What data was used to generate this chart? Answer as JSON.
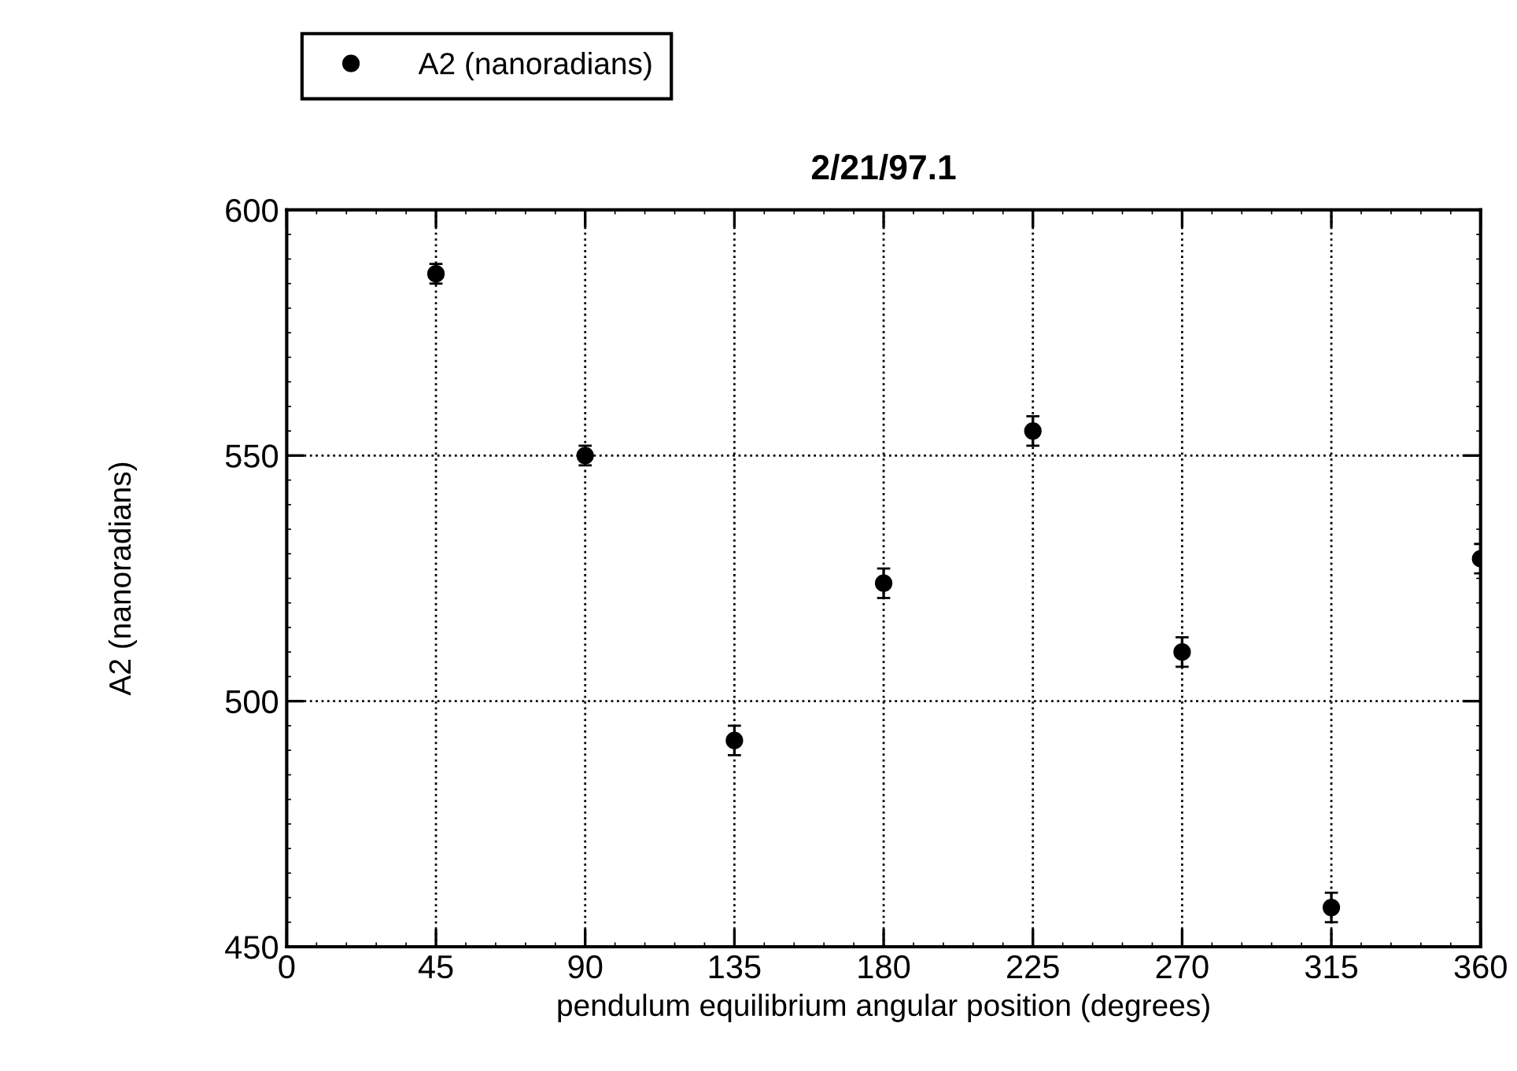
{
  "chart_data": {
    "type": "scatter",
    "title": "2/21/97.1",
    "xlabel": "pendulum equilibrium angular position (degrees)",
    "ylabel": "A2 (nanoradians)",
    "x": [
      45,
      90,
      135,
      180,
      225,
      270,
      315,
      360
    ],
    "series": [
      {
        "name": "A2 (nanoradians)",
        "color": "#000000",
        "values": [
          587,
          550,
          492,
          524,
          555,
          510,
          458,
          529
        ],
        "errors": [
          2,
          2,
          3,
          3,
          3,
          3,
          3,
          3
        ]
      }
    ],
    "xlim": [
      0,
      360
    ],
    "xticks": [
      0,
      45,
      90,
      135,
      180,
      225,
      270,
      315,
      360
    ],
    "ylim": [
      450,
      600
    ],
    "yticks": [
      450,
      500,
      550,
      600
    ],
    "grid": true,
    "legend": "top left",
    "marker": "circle"
  }
}
